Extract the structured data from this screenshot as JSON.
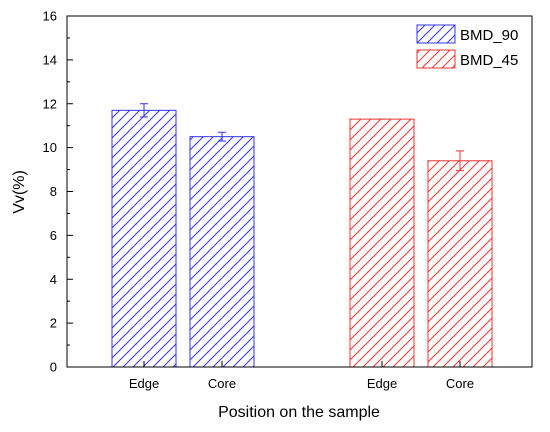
{
  "chart_data": {
    "type": "bar",
    "xlabel": "Position on the sample",
    "ylabel": "Vv(%)",
    "ylim": [
      0,
      16
    ],
    "yticks": [
      0,
      2,
      4,
      6,
      8,
      10,
      12,
      14,
      16
    ],
    "grid": false,
    "legend_position": "top-right",
    "series": [
      {
        "name": "BMD_90",
        "color": "#3333ee",
        "categories": [
          "Edge",
          "Core"
        ],
        "values": [
          11.7,
          10.5
        ],
        "errors": [
          0.3,
          0.2
        ]
      },
      {
        "name": "BMD_45",
        "color": "#ee3333",
        "categories": [
          "Edge",
          "Core"
        ],
        "values": [
          11.3,
          9.4
        ],
        "errors": [
          0.0,
          0.45
        ]
      }
    ]
  }
}
